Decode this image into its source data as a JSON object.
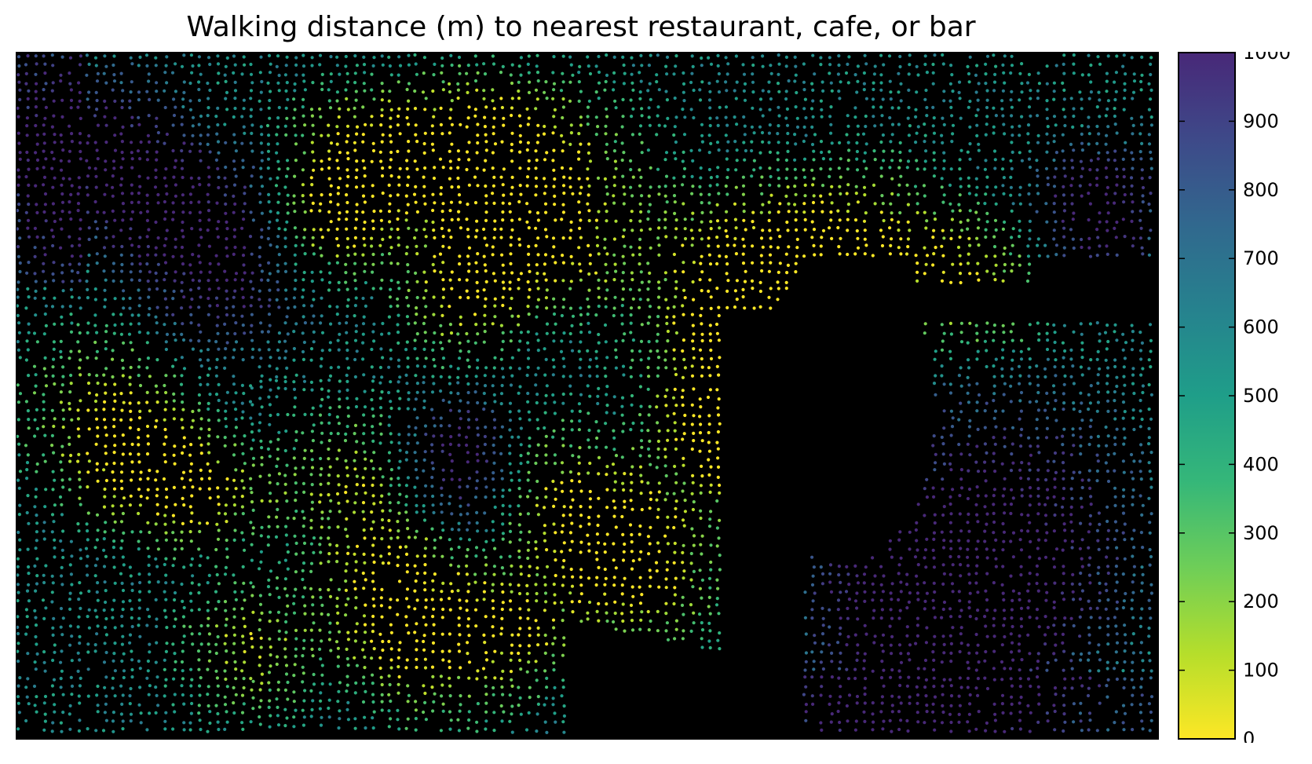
{
  "chart_data": {
    "type": "scatter",
    "title": "Walking distance (m) to nearest restaurant, cafe, or bar",
    "xlabel": "",
    "ylabel": "",
    "colormap": "viridis_r",
    "background": "#000000",
    "color_range": [
      0,
      1000
    ],
    "colorbar": {
      "ticks": [
        0,
        100,
        200,
        300,
        400,
        500,
        600,
        700,
        800,
        900,
        1000
      ],
      "tick_labels": [
        "0",
        "100",
        "200",
        "300",
        "400",
        "500",
        "600",
        "700",
        "800",
        "900",
        "1000"
      ]
    },
    "points_note_is_dense_street_network": false,
    "grid": false,
    "axes_ticks": false
  }
}
